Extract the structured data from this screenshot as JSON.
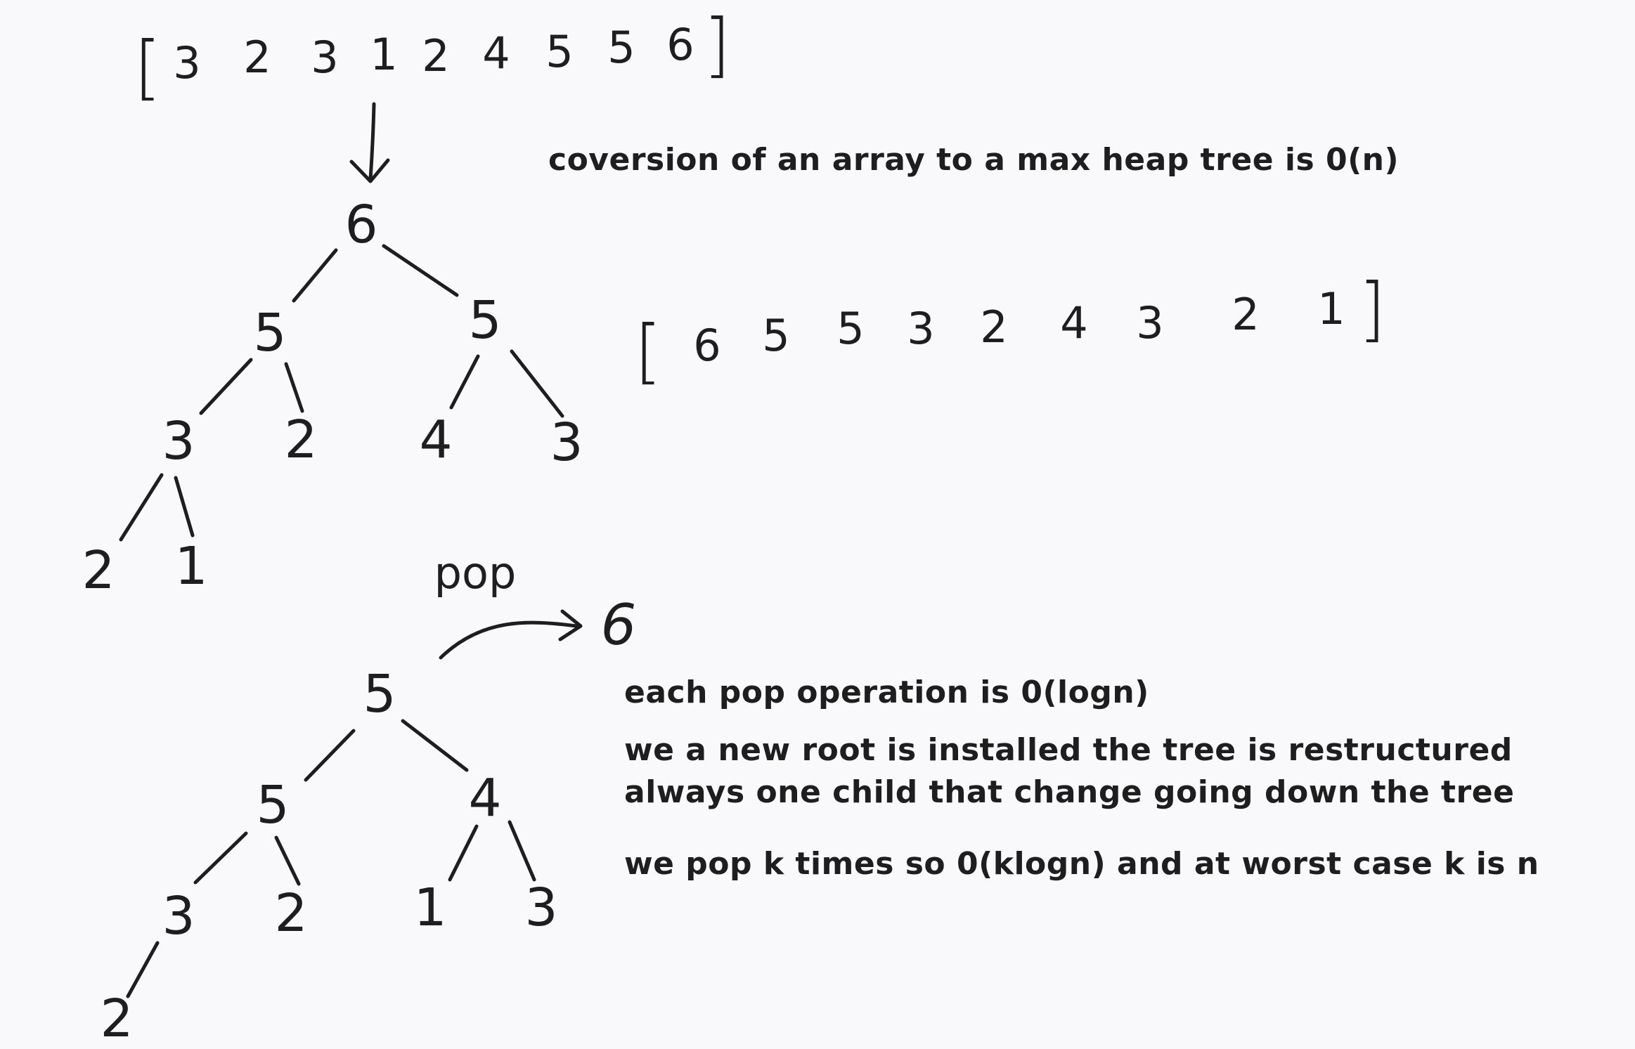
{
  "arrays": {
    "input": [
      "3",
      "2",
      "3",
      "1",
      "2",
      "4",
      "5",
      "5",
      "6"
    ],
    "heap": [
      "6",
      "5",
      "5",
      "3",
      "2",
      "4",
      "3",
      "2",
      "1"
    ],
    "open_bracket": "[",
    "close_bracket": "]"
  },
  "heap_tree": {
    "root": "6",
    "level1": [
      "5",
      "5"
    ],
    "level2": [
      "3",
      "2",
      "4",
      "3"
    ],
    "level3": [
      "2",
      "1"
    ]
  },
  "pop_tree": {
    "root": "5",
    "level1": [
      "5",
      "4"
    ],
    "level2": [
      "3",
      "2",
      "1",
      "3"
    ],
    "level3": [
      "2"
    ]
  },
  "pop": {
    "word": "pop",
    "popped_value": "6"
  },
  "notes": {
    "conversion": "coversion of an array to a max heap tree is 0(n)",
    "pop_cost": "each pop operation is 0(logn)",
    "restructure_1": "we a new root is installed the tree is restructured",
    "restructure_2": "always one child that change going down the tree",
    "total_cost": "we pop k times so 0(klogn) and at worst case k is n"
  },
  "colors": {
    "ink": "#1e1e1e",
    "background": "#f9f9fb"
  }
}
